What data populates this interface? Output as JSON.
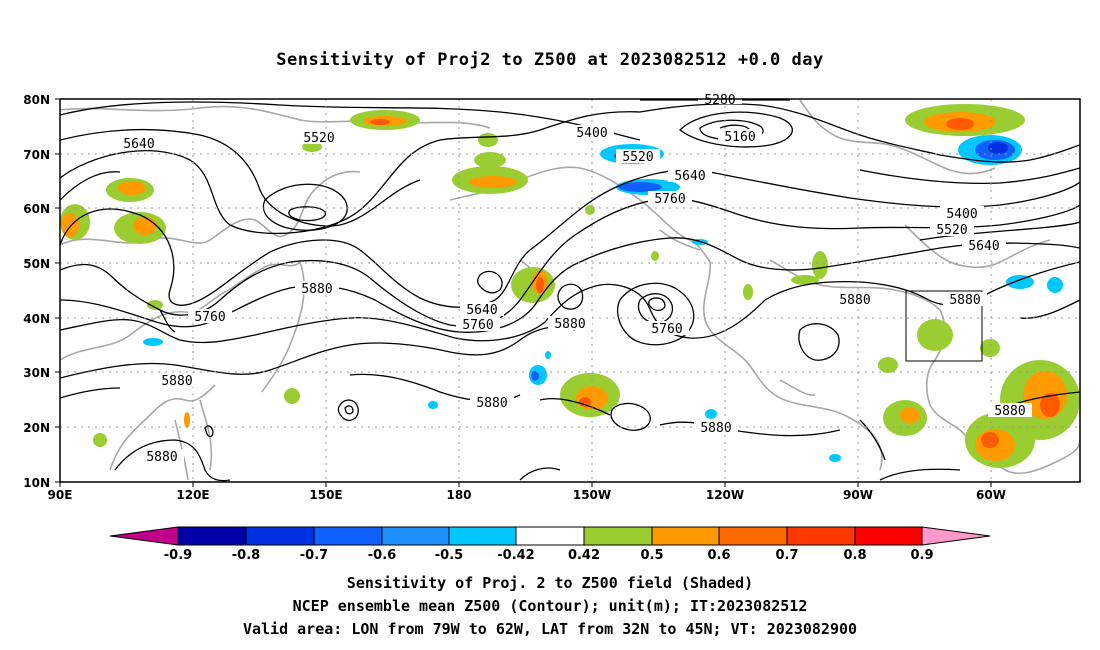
{
  "title": "Sensitivity of Proj2 to Z500 at 2023082512 +0.0 day",
  "lat_labels": [
    "80N",
    "70N",
    "60N",
    "50N",
    "40N",
    "30N",
    "20N",
    "10N"
  ],
  "lon_labels": [
    "90E",
    "120E",
    "150E",
    "180",
    "150W",
    "120W",
    "90W",
    "60W"
  ],
  "contour_labels": [
    "5640",
    "5520",
    "5400",
    "5280",
    "5160",
    "5520",
    "5640",
    "5760",
    "5400",
    "5520",
    "5640",
    "5880",
    "5880",
    "5640",
    "5760",
    "5880",
    "5760",
    "5880",
    "5760",
    "5880",
    "5880",
    "5880",
    "5880",
    "5880"
  ],
  "colorbar": {
    "labels": [
      "-0.9",
      "-0.8",
      "-0.7",
      "-0.6",
      "-0.5",
      "-0.42",
      "0.42",
      "0.5",
      "0.6",
      "0.7",
      "0.8",
      "0.9"
    ],
    "colors": [
      "#c0008a",
      "#0000a8",
      "#0030e0",
      "#1060ff",
      "#2090ff",
      "#00c8ff",
      "#ffffff",
      "#9acd32",
      "#ff9a00",
      "#ff6a00",
      "#ff3800",
      "#ff0000",
      "#ff99cc"
    ]
  },
  "captions": [
    "Sensitivity of Proj. 2 to Z500 field (Shaded)",
    "NCEP ensemble mean Z500 (Contour); unit(m); IT:2023082512",
    "Valid area: LON from 79W to 62W, LAT from 32N to 45N; VT: 2023082900"
  ]
}
